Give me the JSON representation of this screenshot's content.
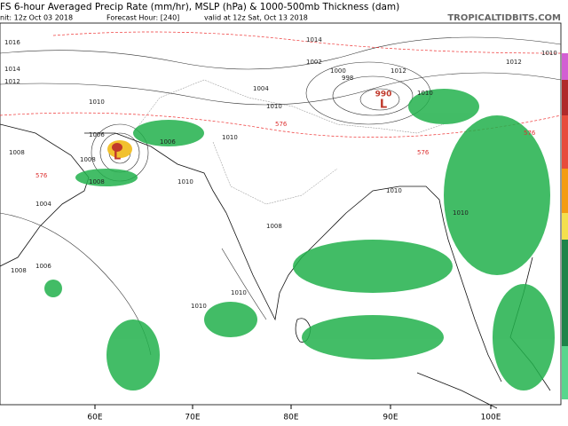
{
  "header": {
    "title": "FS 6-hour Averaged Precip Rate (mm/hr), MSLP (hPa) & 1000-500mb Thickness (dam)",
    "init": "nit: 12z Oct 03 2018",
    "forecast_hour": "Forecast Hour: [240]",
    "valid": "valid at 12z Sat, Oct 13 2018",
    "source": "TROPICALTIDBITS.COM"
  },
  "longitude_labels": [
    "60E",
    "70E",
    "80E",
    "90E",
    "100E"
  ],
  "isobar_labels": [
    "1016",
    "1014",
    "1012",
    "1010",
    "1008",
    "1006",
    "1004",
    "1010",
    "1010",
    "1010",
    "1008",
    "1006",
    "1004",
    "1002",
    "1000",
    "998",
    "1014",
    "1012",
    "1010",
    "1010",
    "1008",
    "1010",
    "1010",
    "1008",
    "1008",
    "1010",
    "1012",
    "1010",
    "1006"
  ],
  "thickness_labels": [
    "576",
    "576",
    "576",
    "576"
  ],
  "lows": [
    {
      "pressure": "990",
      "symbol": "L"
    },
    {
      "symbol": "L"
    }
  ]
}
